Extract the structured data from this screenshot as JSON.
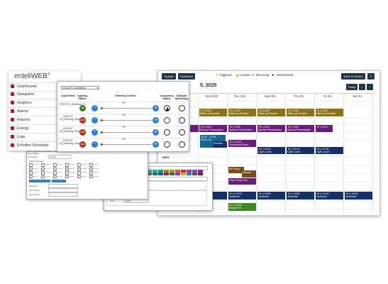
{
  "scheduler": {
    "toolbar": {
      "upload": "Upload",
      "download": "Download",
      "save": "Save to Device",
      "help": "?"
    },
    "legend": {
      "triggered": "Triggered",
      "lockout": "Lockout",
      "recurring": "Recurring",
      "astronomical": "Astronomical"
    },
    "date_fragment": "5, 2025",
    "today": "Today",
    "days": [
      "Mon 3/30",
      "Tue 3/31",
      "Wed 3/1",
      "Thu 3/1",
      "Fri 3/1",
      "Sat 3/1"
    ],
    "times": [
      "1pm",
      "5pm"
    ],
    "events": {
      "wake": "Wake up Routine",
      "wake_time": "6:00",
      "special": "Special Presentation",
      "special_time": "9:00",
      "lunch": "Light Lunch",
      "lunch_time": "11:00",
      "janitorial": "Janitorial",
      "janitorial_time": "19:00",
      "scheduled": "Scheduled Event",
      "scheduled_time": "11:00",
      "set_temp": "Set Temp",
      "manual": "Manual",
      "clear_temp": "Clear Temp Con.",
      "sweep": "Sweep Off",
      "sweep_time": "19:00",
      "photo": "Photo Ce",
      "photo_time": "10:30 - 12:45",
      "sched_short": "Schedul"
    }
  },
  "menu": {
    "logo": "enteliWEB",
    "items": [
      "Dashboards",
      "Navigation",
      "Graphics",
      "Alarms",
      "Reports",
      "Energy",
      "Logs",
      "Echoflex Scheduler"
    ]
  },
  "lighting": {
    "select_value": "Coord F1 Coordinator",
    "headers": [
      "Light Name",
      "Lighting Status",
      "Dimming Control",
      "Occupancy Status",
      "Daylight Harvesting"
    ],
    "rows": [
      {
        "name": "ROOT01T_DimRelay_01",
        "status": "ON",
        "level": "0%"
      },
      {
        "name": "[DEVICE IO]_Dimming_Relay_01",
        "status": "OFF",
        "level": "0%"
      },
      {
        "name": "[DEVICE IO]_Dimming_Relay_02",
        "status": "OFF",
        "level": "0%"
      },
      {
        "name": "[DEVICE IO]_Dimming_Relay_03",
        "status": "OFF",
        "level": "0%"
      }
    ],
    "colors": {
      "on": "#3b7d23",
      "off": "#c0281c",
      "accent": "#2c7fdc"
    }
  },
  "event_dialog": {
    "title": "Event Name",
    "fields": [
      "Event Type",
      "Schedule",
      "Event Name",
      "Event Type"
    ],
    "type_value": "On/Off",
    "section": "Affected Groups"
  },
  "schedule_dialog": {
    "title": "Schedule Event",
    "fields": [
      "Event Name",
      "Event Color",
      "Schedule Type",
      "Date"
    ],
    "name_value": "New Scheduled Event",
    "type_value": "Single Date",
    "date_value": "03/27/2025",
    "time_labels": [
      "Trigger Time",
      "Start",
      "Time"
    ],
    "start_value": "Absolute",
    "time_value": "11:00"
  }
}
